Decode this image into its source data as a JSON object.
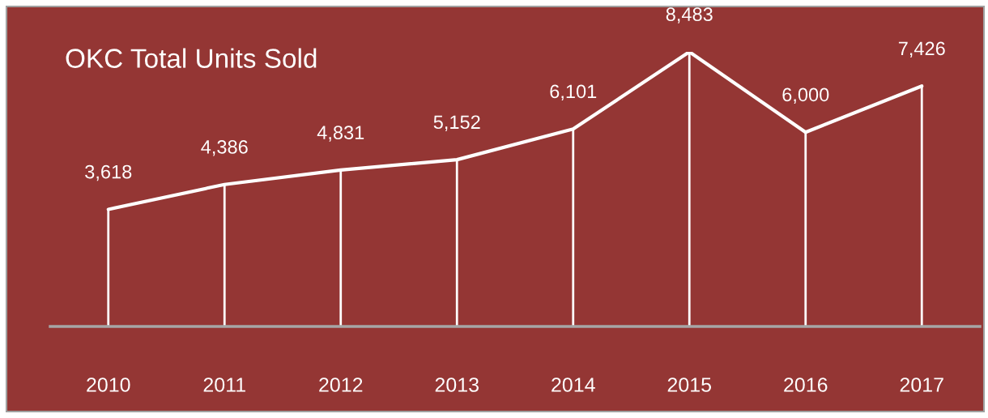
{
  "chart_data": {
    "type": "line",
    "title": "OKC Total Units Sold",
    "categories": [
      "2010",
      "2011",
      "2012",
      "2013",
      "2014",
      "2015",
      "2016",
      "2017"
    ],
    "series": [
      {
        "color": "#ffffff",
        "values": [
          3618,
          4386,
          4831,
          5152,
          6101,
          8483,
          6000,
          7426
        ],
        "value_labels": [
          "3,618",
          "4,386",
          "4,831",
          "5,152",
          "6,101",
          "8,483",
          "6,000",
          "7,426"
        ]
      }
    ],
    "grid": "x",
    "legend": false,
    "marker": "none",
    "line_style": "solid",
    "tick_labels": "x"
  }
}
